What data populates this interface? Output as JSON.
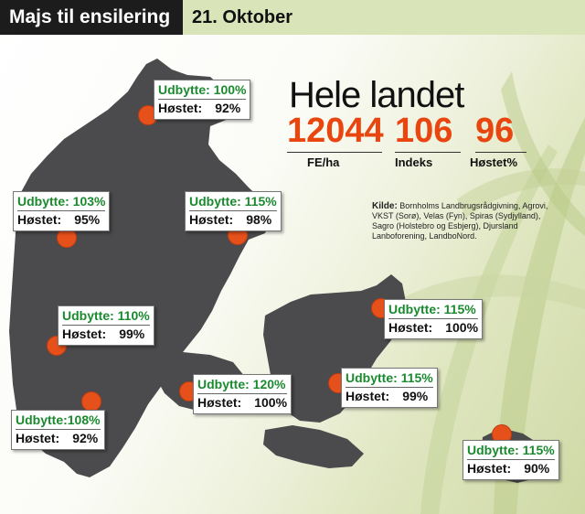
{
  "header": {
    "title": "Majs til ensilering",
    "date": "21. Oktober"
  },
  "summary": {
    "title": "Hele landet",
    "fe": "12044",
    "fe_label": "FE/ha",
    "index": "106",
    "index_label": "Indeks",
    "harvested": "96",
    "harvested_label": "Høstet%"
  },
  "source": {
    "label": "Kilde:",
    "text": "Bornholms Landbrugsrådgivning, Agrovi, VKST (Sorø), Velas (Fyn), Spiras (Sydjylland), Sagro (Holstebro og Esbjerg), Djursland Lanboforening, LandboNord."
  },
  "locations": [
    {
      "yield": "Udbytte: 100%",
      "harvested_label": "Høstet:",
      "harvested": "92%"
    },
    {
      "yield": "Udbytte: 103%",
      "harvested_label": "Høstet:",
      "harvested": "95%"
    },
    {
      "yield": "Udbytte: 115%",
      "harvested_label": "Høstet:",
      "harvested": "98%"
    },
    {
      "yield": "Udbytte: 110%",
      "harvested_label": "Høstet:",
      "harvested": "99%"
    },
    {
      "yield": "Udbytte:108%",
      "harvested_label": "Høstet:",
      "harvested": "92%"
    },
    {
      "yield": "Udbytte: 120%",
      "harvested_label": "Høstet:",
      "harvested": "100%"
    },
    {
      "yield": "Udbytte: 115%",
      "harvested_label": "Høstet:",
      "harvested": "99%"
    },
    {
      "yield": "Udbytte: 115%",
      "harvested_label": "Høstet:",
      "harvested": "100%"
    },
    {
      "yield": "Udbytte: 115%",
      "harvested_label": "Høstet:",
      "harvested": "90%"
    }
  ],
  "colors": {
    "header_bg": "#1c1c1c",
    "date_bg": "#d9e4b8",
    "accent": "#e8450f",
    "yield_text": "#1a8a2e",
    "land": "#4b4b4d"
  }
}
